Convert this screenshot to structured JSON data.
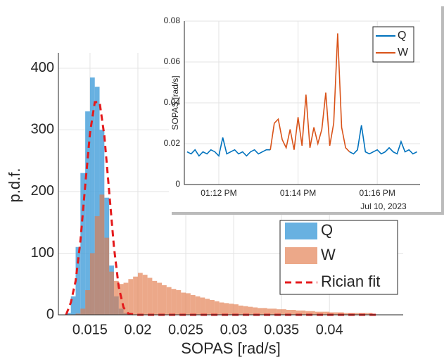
{
  "chart_data": [
    {
      "type": "histogram",
      "xlabel": "SOPAS [rad/s]",
      "ylabel": "p.d.f.",
      "xlim": [
        0.0117,
        0.0477
      ],
      "ylim": [
        0,
        425
      ],
      "xticks": [
        0.015,
        0.02,
        0.025,
        0.03,
        0.035,
        0.04
      ],
      "yticks": [
        0,
        100,
        200,
        300,
        400
      ],
      "grid": true,
      "legend": "lower right",
      "bins": [
        0.0125,
        0.013,
        0.0135,
        0.014,
        0.0145,
        0.015,
        0.0155,
        0.016,
        0.0165,
        0.017,
        0.0175,
        0.018,
        0.0185,
        0.019,
        0.0195,
        0.02,
        0.0205,
        0.021,
        0.0215,
        0.022,
        0.0225,
        0.023,
        0.0235,
        0.024,
        0.0245,
        0.025,
        0.0255,
        0.026,
        0.0265,
        0.027,
        0.0275,
        0.028,
        0.0285,
        0.029,
        0.0295,
        0.03,
        0.0305,
        0.031,
        0.0315,
        0.032,
        0.0325,
        0.033,
        0.0335,
        0.034,
        0.0345,
        0.035,
        0.0355,
        0.036,
        0.0365,
        0.037,
        0.0375,
        0.038,
        0.0385,
        0.039,
        0.0395,
        0.04,
        0.0405,
        0.041,
        0.0415,
        0.042,
        0.0425,
        0.043,
        0.0435,
        0.044,
        0.0445
      ],
      "series": [
        {
          "name": "Q",
          "color": "#4da3dc",
          "values": [
            3,
            30,
            110,
            230,
            330,
            385,
            370,
            300,
            190,
            80,
            30,
            10,
            3,
            0,
            0,
            0,
            0,
            0,
            0,
            0,
            0,
            0,
            0,
            0,
            0,
            0,
            0,
            0,
            0,
            0,
            0,
            0,
            0,
            0,
            0,
            0,
            0,
            0,
            0,
            0,
            0,
            0,
            0,
            0,
            0,
            0,
            0,
            0,
            0,
            0,
            0,
            0,
            0,
            0,
            0,
            0,
            0,
            0,
            0,
            0,
            0,
            0,
            0,
            0
          ]
        },
        {
          "name": "W",
          "color": "#e27a4a",
          "values": [
            0,
            0,
            2,
            10,
            40,
            100,
            160,
            195,
            125,
            70,
            55,
            50,
            52,
            58,
            62,
            68,
            65,
            60,
            55,
            52,
            48,
            45,
            42,
            40,
            36,
            35,
            32,
            30,
            28,
            26,
            24,
            22,
            20,
            19,
            18,
            17,
            15,
            14,
            13,
            12,
            11,
            11,
            10,
            10,
            9,
            9,
            8,
            8,
            7,
            7,
            6,
            6,
            5,
            5,
            5,
            4,
            4,
            4,
            3,
            3,
            3,
            3,
            3,
            3
          ]
        }
      ],
      "fit": {
        "name": "Rician fit",
        "color": "#e41a1c",
        "x": [
          0.0125,
          0.013,
          0.0135,
          0.014,
          0.0145,
          0.015,
          0.0155,
          0.016,
          0.0165,
          0.017,
          0.0175,
          0.018,
          0.0185,
          0.019,
          0.02,
          0.045
        ],
        "values": [
          0,
          20,
          55,
          120,
          210,
          295,
          345,
          345,
          290,
          200,
          110,
          45,
          12,
          2,
          0,
          0
        ]
      }
    },
    {
      "type": "line",
      "ylabel": "SOPAS [rad/s]",
      "annotation": "Jul 10, 2023",
      "xlim": [
        791.13,
        797.08
      ],
      "ylim": [
        0,
        0.08
      ],
      "xticks": [
        {
          "value": 792,
          "label": "01:12 PM"
        },
        {
          "value": 794,
          "label": "01:14 PM"
        },
        {
          "value": 796,
          "label": "01:16 PM"
        }
      ],
      "yticks": [
        0,
        0.02,
        0.04,
        0.06,
        0.08
      ],
      "grid": true,
      "legend": "upper right",
      "x": [
        791.2,
        791.3,
        791.4,
        791.5,
        791.6,
        791.7,
        791.8,
        791.9,
        792,
        792.1,
        792.2,
        792.3,
        792.4,
        792.5,
        792.6,
        792.7,
        792.8,
        792.9,
        793,
        793.1,
        793.2,
        793.3,
        793.4,
        793.5,
        793.6,
        793.7,
        793.8,
        793.9,
        794,
        794.1,
        794.2,
        794.3,
        794.4,
        794.5,
        794.6,
        794.7,
        794.8,
        794.9,
        795,
        795.1,
        795.2,
        795.3,
        795.4,
        795.5,
        795.6,
        795.7,
        795.8,
        795.9,
        796,
        796.1,
        796.2,
        796.3,
        796.4,
        796.5,
        796.6,
        796.7,
        796.8,
        796.9,
        797
      ],
      "series": [
        {
          "name": "Q",
          "color": "#0072bd",
          "values": [
            0.016,
            0.015,
            0.017,
            0.014,
            0.016,
            0.015,
            0.017,
            0.016,
            0.014,
            0.023,
            0.015,
            0.016,
            0.017,
            0.015,
            0.016,
            0.014,
            0.016,
            0.017,
            0.015,
            0.016,
            0.017,
            0.017,
            null,
            null,
            null,
            null,
            null,
            null,
            null,
            null,
            null,
            null,
            null,
            null,
            null,
            null,
            null,
            null,
            null,
            null,
            null,
            0.016,
            0.015,
            0.017,
            0.029,
            0.016,
            0.015,
            0.016,
            0.017,
            0.015,
            0.016,
            0.018,
            0.016,
            0.015,
            0.021,
            0.016,
            0.017,
            0.015,
            0.016
          ]
        },
        {
          "name": "W",
          "color": "#d95319",
          "values": [
            null,
            null,
            null,
            null,
            null,
            null,
            null,
            null,
            null,
            null,
            null,
            null,
            null,
            null,
            null,
            null,
            null,
            null,
            null,
            null,
            null,
            0.017,
            0.03,
            0.032,
            0.022,
            0.018,
            0.027,
            0.017,
            0.033,
            0.019,
            0.044,
            0.018,
            0.028,
            0.02,
            0.027,
            0.045,
            0.019,
            0.03,
            0.074,
            0.028,
            0.018,
            0.016,
            null,
            null,
            null,
            null,
            null,
            null,
            null,
            null,
            null,
            null,
            null,
            null,
            null,
            null,
            null,
            null,
            null
          ]
        }
      ]
    }
  ]
}
